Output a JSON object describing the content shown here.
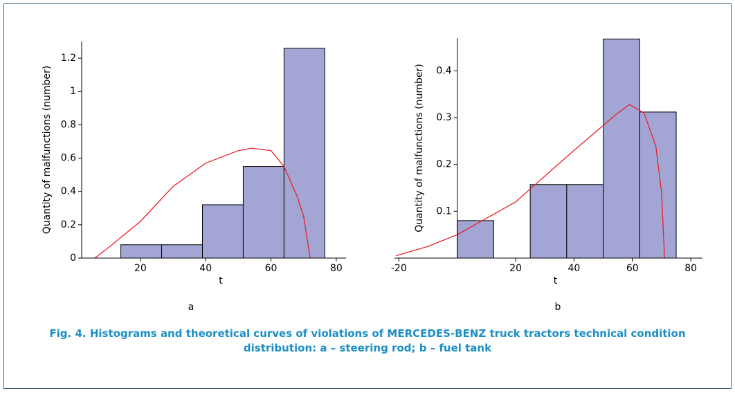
{
  "chart_data": [
    {
      "type": "histogram",
      "annotation": "a",
      "x_label": "t",
      "y_label": "Quantity of malfunctions (number)",
      "bins": [
        14,
        26.5,
        39,
        51.5,
        64,
        76.5
      ],
      "counts": [
        0.08,
        0.08,
        0.32,
        0.55,
        1.26
      ],
      "color": "#a3a6d4",
      "curve": {
        "color": "#e8202a",
        "x": [
          6,
          10,
          20,
          30,
          40,
          50,
          54,
          60,
          64,
          68,
          70,
          72
        ],
        "values": [
          0,
          0.06,
          0.22,
          0.43,
          0.57,
          0.645,
          0.66,
          0.645,
          0.55,
          0.37,
          0.25,
          0
        ]
      },
      "xlim": [
        2,
        83
      ],
      "ylim": [
        0,
        1.3
      ],
      "xticks": [
        20,
        40,
        60,
        80
      ],
      "yticks": [
        0,
        0.2,
        0.4,
        0.6,
        0.8,
        1,
        1.2
      ]
    },
    {
      "type": "histogram",
      "annotation": "b",
      "x_label": "t",
      "y_label": "Quantity of malfunctions (number)",
      "bins": [
        0,
        12.5,
        25,
        37.5,
        50,
        62.5,
        75
      ],
      "counts": [
        0.08,
        0,
        0.157,
        0.157,
        0.468,
        0.312
      ],
      "color": "#a3a6d4",
      "curve": {
        "color": "#e8202a",
        "x": [
          -21,
          -10,
          0,
          20,
          40,
          55,
          59,
          64,
          68,
          70,
          71
        ],
        "values": [
          0.005,
          0.025,
          0.05,
          0.12,
          0.23,
          0.31,
          0.328,
          0.31,
          0.24,
          0.14,
          0
        ]
      },
      "xlim": [
        -21.5,
        84
      ],
      "ylim": [
        0,
        0.47
      ],
      "xticks": [
        -20,
        20,
        40,
        60,
        80
      ],
      "yticks": [
        0.1,
        0.2,
        0.3,
        0.4
      ]
    }
  ],
  "caption": [
    "Fig. 4. Histograms and theoretical curves of violations of MERCEDES-BENZ truck tractors technical condition",
    "distribution: a – steering rod; b – fuel tank"
  ]
}
